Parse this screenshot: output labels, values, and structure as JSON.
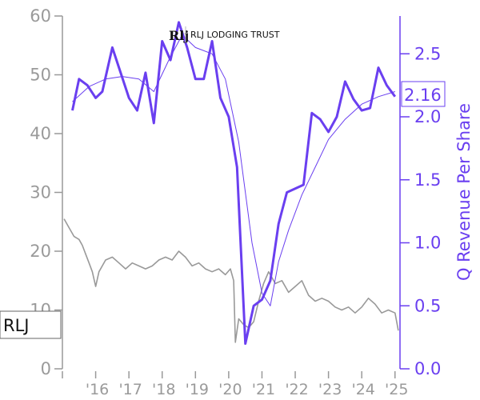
{
  "chart_data": {
    "type": "line",
    "logo": {
      "mark": "Rlj",
      "text": "RLJ LODGING TRUST"
    },
    "x_ticks": [
      {
        "label": "'16",
        "x": 2016
      },
      {
        "label": "'17",
        "x": 2017
      },
      {
        "label": "'18",
        "x": 2018
      },
      {
        "label": "'19",
        "x": 2019
      },
      {
        "label": "'20",
        "x": 2020
      },
      {
        "label": "'21",
        "x": 2021
      },
      {
        "label": "'22",
        "x": 2022
      },
      {
        "label": "'23",
        "x": 2023
      },
      {
        "label": "'24",
        "x": 2024
      },
      {
        "label": "'25",
        "x": 2025
      }
    ],
    "xlim": [
      2015.0,
      2025.15
    ],
    "left_axis": {
      "ticks": [
        "0",
        "10",
        "20",
        "30",
        "40",
        "50",
        "60"
      ],
      "ylim": [
        0,
        60
      ]
    },
    "right_axis": {
      "label": "Q Revenue Per Share",
      "ticks": [
        "0.0",
        "0.5",
        "1.0",
        "1.5",
        "2.0",
        "2.5"
      ],
      "ylim": [
        0,
        2.8
      ]
    },
    "price_label": "RLJ",
    "revenue_label": "2.16",
    "colors": {
      "price": "#999999",
      "revenue": "#6a3ff0",
      "trend": "#6a3ff0",
      "axis_left": "#999999"
    },
    "series": [
      {
        "kind": "price",
        "axis": "left",
        "points": [
          [
            2015.05,
            25.5
          ],
          [
            2015.2,
            24.0
          ],
          [
            2015.35,
            22.5
          ],
          [
            2015.5,
            22.0
          ],
          [
            2015.6,
            21.0
          ],
          [
            2015.7,
            19.5
          ],
          [
            2015.8,
            18.0
          ],
          [
            2015.9,
            16.5
          ],
          [
            2016.0,
            14.0
          ],
          [
            2016.1,
            16.5
          ],
          [
            2016.3,
            18.5
          ],
          [
            2016.5,
            19.0
          ],
          [
            2016.7,
            18.0
          ],
          [
            2016.9,
            17.0
          ],
          [
            2017.1,
            18.0
          ],
          [
            2017.3,
            17.5
          ],
          [
            2017.5,
            17.0
          ],
          [
            2017.7,
            17.5
          ],
          [
            2017.9,
            18.5
          ],
          [
            2018.1,
            19.0
          ],
          [
            2018.3,
            18.5
          ],
          [
            2018.5,
            20.0
          ],
          [
            2018.7,
            19.0
          ],
          [
            2018.9,
            17.5
          ],
          [
            2019.1,
            18.0
          ],
          [
            2019.3,
            17.0
          ],
          [
            2019.5,
            16.5
          ],
          [
            2019.7,
            17.0
          ],
          [
            2019.9,
            16.0
          ],
          [
            2020.05,
            17.0
          ],
          [
            2020.15,
            15.0
          ],
          [
            2020.2,
            4.5
          ],
          [
            2020.3,
            8.5
          ],
          [
            2020.45,
            7.5
          ],
          [
            2020.6,
            7.0
          ],
          [
            2020.75,
            8.0
          ],
          [
            2020.9,
            11.5
          ],
          [
            2021.05,
            14.5
          ],
          [
            2021.2,
            16.5
          ],
          [
            2021.4,
            14.5
          ],
          [
            2021.6,
            15.0
          ],
          [
            2021.8,
            13.0
          ],
          [
            2022.0,
            14.0
          ],
          [
            2022.2,
            15.0
          ],
          [
            2022.4,
            12.5
          ],
          [
            2022.6,
            11.5
          ],
          [
            2022.8,
            12.0
          ],
          [
            2023.0,
            11.5
          ],
          [
            2023.2,
            10.5
          ],
          [
            2023.4,
            10.0
          ],
          [
            2023.6,
            10.5
          ],
          [
            2023.8,
            9.5
          ],
          [
            2024.0,
            10.5
          ],
          [
            2024.2,
            12.0
          ],
          [
            2024.4,
            11.0
          ],
          [
            2024.6,
            9.5
          ],
          [
            2024.8,
            10.0
          ],
          [
            2025.0,
            9.5
          ],
          [
            2025.1,
            6.5
          ]
        ]
      },
      {
        "kind": "revenue",
        "axis": "right",
        "points": [
          [
            2015.3,
            2.05
          ],
          [
            2015.5,
            2.3
          ],
          [
            2015.75,
            2.25
          ],
          [
            2016.0,
            2.15
          ],
          [
            2016.2,
            2.2
          ],
          [
            2016.5,
            2.55
          ],
          [
            2016.75,
            2.35
          ],
          [
            2017.0,
            2.15
          ],
          [
            2017.25,
            2.05
          ],
          [
            2017.5,
            2.35
          ],
          [
            2017.75,
            1.95
          ],
          [
            2018.0,
            2.6
          ],
          [
            2018.25,
            2.45
          ],
          [
            2018.5,
            2.75
          ],
          [
            2018.75,
            2.55
          ],
          [
            2019.0,
            2.3
          ],
          [
            2019.25,
            2.3
          ],
          [
            2019.5,
            2.6
          ],
          [
            2019.75,
            2.15
          ],
          [
            2020.0,
            2.0
          ],
          [
            2020.25,
            1.6
          ],
          [
            2020.5,
            0.2
          ],
          [
            2020.75,
            0.5
          ],
          [
            2021.0,
            0.55
          ],
          [
            2021.25,
            0.7
          ],
          [
            2021.5,
            1.15
          ],
          [
            2021.75,
            1.4
          ],
          [
            2022.0,
            1.43
          ],
          [
            2022.25,
            1.46
          ],
          [
            2022.5,
            2.03
          ],
          [
            2022.75,
            1.98
          ],
          [
            2023.0,
            1.88
          ],
          [
            2023.25,
            2.0
          ],
          [
            2023.5,
            2.28
          ],
          [
            2023.75,
            2.14
          ],
          [
            2024.0,
            2.05
          ],
          [
            2024.25,
            2.07
          ],
          [
            2024.5,
            2.39
          ],
          [
            2024.75,
            2.25
          ],
          [
            2025.0,
            2.16
          ]
        ]
      },
      {
        "kind": "trend",
        "axis": "right",
        "points": [
          [
            2015.3,
            2.12
          ],
          [
            2015.8,
            2.24
          ],
          [
            2016.3,
            2.3
          ],
          [
            2016.8,
            2.32
          ],
          [
            2017.3,
            2.3
          ],
          [
            2017.75,
            2.2
          ],
          [
            2018.2,
            2.45
          ],
          [
            2018.6,
            2.65
          ],
          [
            2019.0,
            2.55
          ],
          [
            2019.5,
            2.5
          ],
          [
            2019.9,
            2.3
          ],
          [
            2020.3,
            1.8
          ],
          [
            2020.7,
            1.0
          ],
          [
            2021.0,
            0.6
          ],
          [
            2021.25,
            0.5
          ],
          [
            2021.5,
            0.85
          ],
          [
            2021.8,
            1.1
          ],
          [
            2022.2,
            1.38
          ],
          [
            2022.6,
            1.6
          ],
          [
            2023.0,
            1.82
          ],
          [
            2023.5,
            1.98
          ],
          [
            2024.0,
            2.1
          ],
          [
            2024.5,
            2.16
          ],
          [
            2025.0,
            2.2
          ]
        ]
      }
    ]
  }
}
